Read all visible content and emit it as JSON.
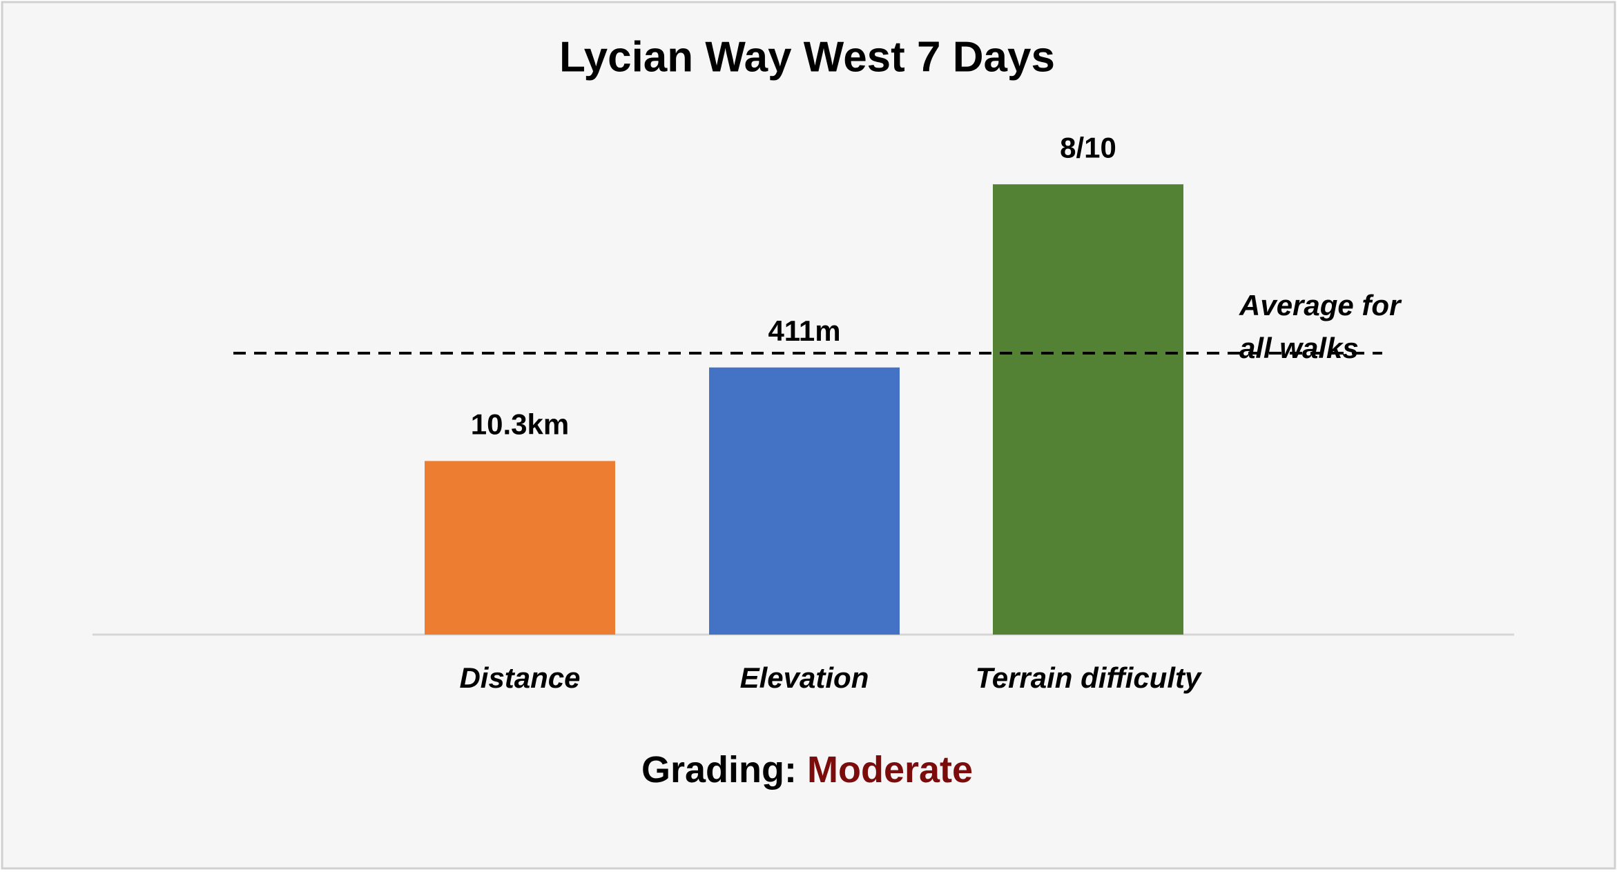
{
  "chart_data": {
    "type": "bar",
    "title": "Lycian Way West 7 Days",
    "categories": [
      "Distance",
      "Elevation",
      "Terrain difficulty"
    ],
    "values": [
      10.3,
      411,
      8
    ],
    "value_labels": [
      "10.3km",
      "411m",
      "8/10"
    ],
    "colors": [
      "#ed7d31",
      "#4472c4",
      "#548235"
    ],
    "reference_line": {
      "label": [
        "Average for",
        "all walks"
      ],
      "values": [
        16.7,
        433,
        5
      ],
      "style": "dashed"
    },
    "footer": {
      "label": "Grading:",
      "value": "Moderate",
      "value_color": "#7b0c0c"
    }
  }
}
